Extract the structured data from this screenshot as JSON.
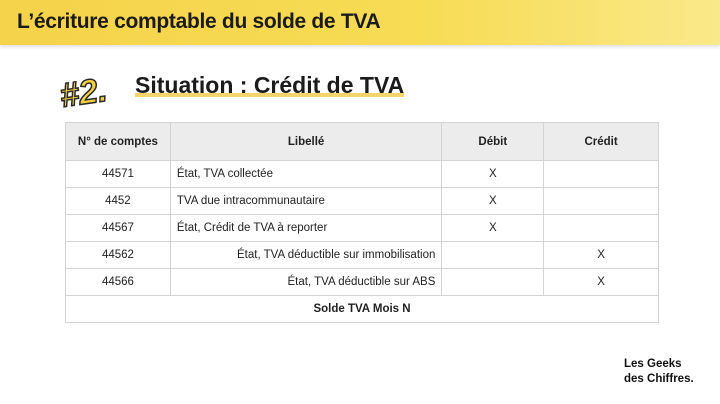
{
  "header": {
    "title": "L’écriture comptable du solde de TVA"
  },
  "section": {
    "badge": "#2.",
    "title": "Situation : Crédit de TVA"
  },
  "table": {
    "columns": [
      "N° de comptes",
      "Libellé",
      "Débit",
      "Crédit"
    ],
    "rows": [
      {
        "account": "44571",
        "label": "État, TVA collectée",
        "debit": "X",
        "credit": "",
        "align": "l"
      },
      {
        "account": "4452",
        "label": "TVA due intracommunautaire",
        "debit": "X",
        "credit": "",
        "align": "l"
      },
      {
        "account": "44567",
        "label": "État, Crédit de TVA à reporter",
        "debit": "X",
        "credit": "",
        "align": "l"
      },
      {
        "account": "44562",
        "label": "État, TVA déductible sur immobilisation",
        "debit": "",
        "credit": "X",
        "align": "r"
      },
      {
        "account": "44566",
        "label": "État, TVA déductible sur ABS",
        "debit": "",
        "credit": "X",
        "align": "r"
      }
    ],
    "footer": "Solde TVA Mois N"
  },
  "logo": {
    "line1": "Les Geeks",
    "line2": "des Chiffres."
  },
  "colors": {
    "accent": "#f5d34a"
  }
}
